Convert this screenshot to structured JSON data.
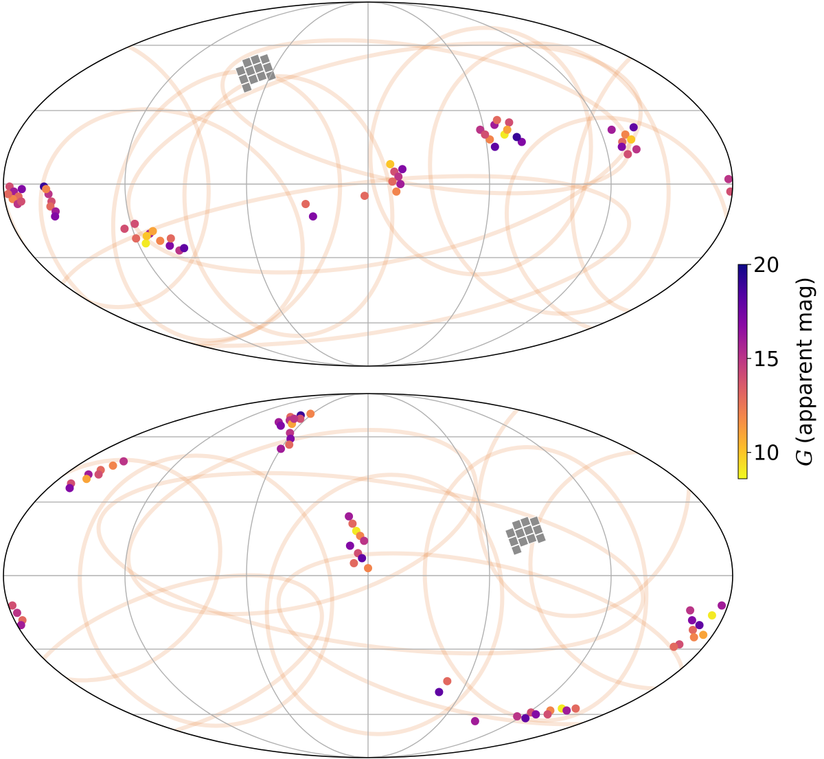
{
  "chart_data": {
    "type": "mollweide-scatter",
    "xlim": [
      -180,
      180
    ],
    "ylim": [
      -90,
      90
    ],
    "xticks": [
      -120,
      -60,
      0,
      60,
      120
    ],
    "yticks": [
      -60,
      -30,
      0,
      30,
      60
    ],
    "grid": true,
    "clim": [
      8.6,
      20
    ],
    "cticks": [
      10,
      15,
      20
    ],
    "colormap": "plasma-reversed",
    "colorbar_symbol": "G",
    "colorbar_label": "(apparent mag)",
    "panels": [
      {
        "x": [
          -177,
          -175,
          -173,
          -176,
          -174,
          -171,
          -178,
          -172,
          -160,
          -158,
          -157,
          -158,
          -156,
          -157,
          -159,
          -124,
          -120,
          -116,
          -112,
          -108,
          -104,
          -100,
          -97,
          -118,
          -110,
          -102,
          -114,
          -31,
          -27.6,
          -1.7,
          11,
          13,
          15,
          17,
          12,
          16,
          14,
          58,
          62,
          66,
          70,
          74,
          78,
          64,
          68,
          72,
          60,
          76,
          126,
          129,
          132,
          135,
          138,
          130,
          134,
          128,
          178,
          179
        ],
        "y": [
          -1,
          -3,
          -5,
          -6,
          -8,
          -2,
          -4,
          -7,
          -1,
          -4,
          -7,
          -9,
          -11,
          -13,
          -2,
          -18,
          -22,
          -24,
          -20,
          -23,
          -25,
          -27,
          -26,
          -16,
          -19,
          -22,
          -21,
          -8,
          -13,
          -4.7,
          8,
          5,
          3,
          6,
          1,
          0,
          -3,
          22,
          18,
          24,
          20,
          25,
          17,
          15,
          26,
          22,
          20,
          19,
          22,
          17,
          20,
          14,
          23,
          12,
          18,
          15,
          2,
          -3
        ],
        "c": [
          14,
          16,
          13,
          12,
          15,
          17,
          13,
          14,
          19,
          15,
          14,
          13,
          16,
          17,
          12,
          14,
          13,
          9,
          16,
          12,
          17,
          15,
          18,
          14,
          11,
          13,
          10,
          13,
          17,
          13,
          10,
          14,
          15,
          17,
          13,
          16,
          12,
          15,
          12,
          16,
          9,
          14,
          17,
          18,
          13,
          11,
          14,
          19,
          16,
          13,
          12,
          15,
          18,
          14,
          10,
          17,
          15,
          14
        ]
      },
      {
        "x": [
          -82,
          -78,
          -74,
          -70,
          -66,
          -62,
          -76,
          -68,
          -72,
          -62,
          -58,
          -56,
          -60,
          -170,
          -166,
          -162,
          -158,
          -155,
          -168,
          -160,
          -164,
          -10,
          -8,
          -6,
          -4,
          -2,
          -9,
          -5,
          -3,
          -7,
          0,
          -178,
          -177,
          -176,
          -178,
          162,
          165,
          168,
          171,
          174,
          177,
          166,
          170,
          175,
          164,
          116,
          122,
          128,
          134,
          140,
          146,
          150,
          125,
          137,
          88,
          45.6,
          48
        ],
        "y": [
          68,
          71,
          69,
          72,
          70,
          73,
          66,
          67,
          70,
          62,
          59,
          56,
          54,
          38,
          42,
          44,
          46,
          48,
          36,
          42,
          40,
          24,
          21,
          18,
          16,
          14,
          12,
          9,
          7,
          5,
          3,
          -12,
          -15,
          -18,
          -20,
          -14,
          -18,
          -22,
          -25,
          -16,
          -12,
          -28,
          -20,
          -24,
          -29,
          -61,
          -59,
          -60,
          -58,
          -57,
          -58,
          -57,
          -62,
          -60,
          -63.6,
          -49,
          -44
        ],
        "c": [
          16,
          13,
          15,
          19,
          14,
          12,
          17,
          11,
          15,
          15,
          17,
          13,
          16,
          14,
          16,
          13,
          12,
          15,
          17,
          14,
          11,
          16,
          13,
          9,
          12,
          15,
          17,
          14,
          18,
          13,
          12,
          14,
          15,
          13,
          16,
          15,
          17,
          13,
          12,
          9,
          16,
          14,
          18,
          11,
          13,
          15,
          14,
          17,
          12,
          9,
          16,
          13,
          18,
          14,
          16,
          18,
          13
        ]
      }
    ]
  }
}
